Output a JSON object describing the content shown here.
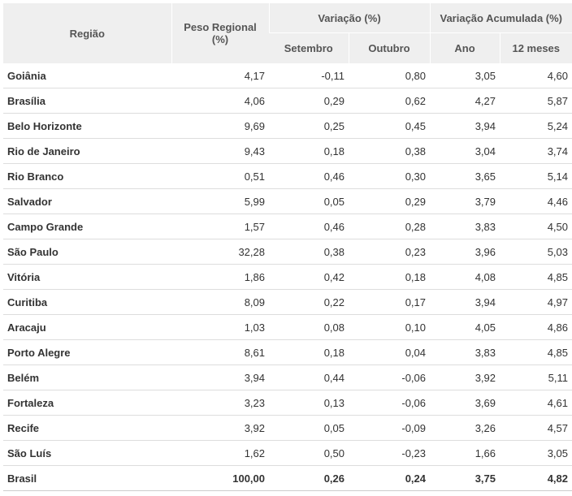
{
  "header": {
    "regiao": "Região",
    "peso": "Peso Regional",
    "peso_unit": "(%)",
    "variacao": "Variação (%)",
    "setembro": "Setembro",
    "outubro": "Outubro",
    "acumulada": "Variação Acumulada (%)",
    "ano": "Ano",
    "meses": "12 meses"
  },
  "rows": [
    [
      "Goiânia",
      "4,17",
      "-0,11",
      "0,80",
      "3,05",
      "4,60"
    ],
    [
      "Brasília",
      "4,06",
      "0,29",
      "0,62",
      "4,27",
      "5,87"
    ],
    [
      "Belo Horizonte",
      "9,69",
      "0,25",
      "0,45",
      "3,94",
      "5,24"
    ],
    [
      "Rio de Janeiro",
      "9,43",
      "0,18",
      "0,38",
      "3,04",
      "3,74"
    ],
    [
      "Rio Branco",
      "0,51",
      "0,46",
      "0,30",
      "3,65",
      "5,14"
    ],
    [
      "Salvador",
      "5,99",
      "0,05",
      "0,29",
      "3,79",
      "4,46"
    ],
    [
      "Campo Grande",
      "1,57",
      "0,46",
      "0,28",
      "3,83",
      "4,50"
    ],
    [
      "São Paulo",
      "32,28",
      "0,38",
      "0,23",
      "3,96",
      "5,03"
    ],
    [
      "Vitória",
      "1,86",
      "0,42",
      "0,18",
      "4,08",
      "4,85"
    ],
    [
      "Curitiba",
      "8,09",
      "0,22",
      "0,17",
      "3,94",
      "4,97"
    ],
    [
      "Aracaju",
      "1,03",
      "0,08",
      "0,10",
      "4,05",
      "4,86"
    ],
    [
      "Porto Alegre",
      "8,61",
      "0,18",
      "0,04",
      "3,83",
      "4,85"
    ],
    [
      "Belém",
      "3,94",
      "0,44",
      "-0,06",
      "3,92",
      "5,11"
    ],
    [
      "Fortaleza",
      "3,23",
      "0,13",
      "-0,06",
      "3,69",
      "4,61"
    ],
    [
      "Recife",
      "3,92",
      "0,05",
      "-0,09",
      "3,26",
      "4,57"
    ],
    [
      "São Luís",
      "1,62",
      "0,50",
      "-0,23",
      "1,66",
      "3,05"
    ]
  ],
  "total": [
    "Brasil",
    "100,00",
    "0,26",
    "0,24",
    "3,75",
    "4,82"
  ]
}
